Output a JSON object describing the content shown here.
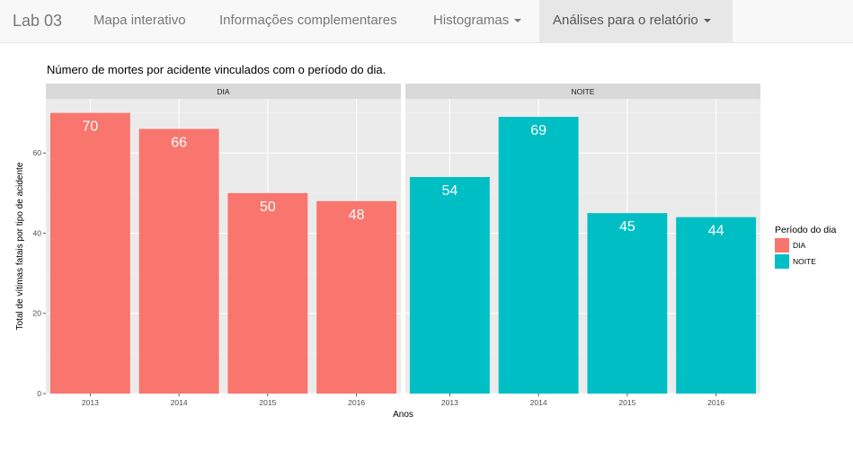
{
  "nav": {
    "brand": "Lab 03",
    "items": [
      {
        "label": "Mapa interativo",
        "dropdown": false,
        "active": false
      },
      {
        "label": "Informações complementares",
        "dropdown": false,
        "active": false
      },
      {
        "label": "Histogramas",
        "dropdown": true,
        "active": false
      },
      {
        "label": "Análises para o relatório",
        "dropdown": true,
        "active": true
      }
    ]
  },
  "chart_data": {
    "type": "bar",
    "title": "Número de mortes por acidente vinculados com o período do dia.",
    "xlabel": "Anos",
    "ylabel": "Total de vítimas fatais por tipo de acidente",
    "categories": [
      "2013",
      "2014",
      "2015",
      "2016"
    ],
    "facets": [
      "DIA",
      "NOITE"
    ],
    "series": [
      {
        "name": "DIA",
        "color": "#F8766D",
        "values": [
          70,
          66,
          50,
          48
        ]
      },
      {
        "name": "NOITE",
        "color": "#00BFC4",
        "values": [
          54,
          69,
          45,
          44
        ]
      }
    ],
    "yticks": [
      0,
      20,
      40,
      60
    ],
    "ylim": [
      0,
      73.5
    ],
    "legend": {
      "title": "Período do dia",
      "position": "right"
    },
    "grid": true
  }
}
